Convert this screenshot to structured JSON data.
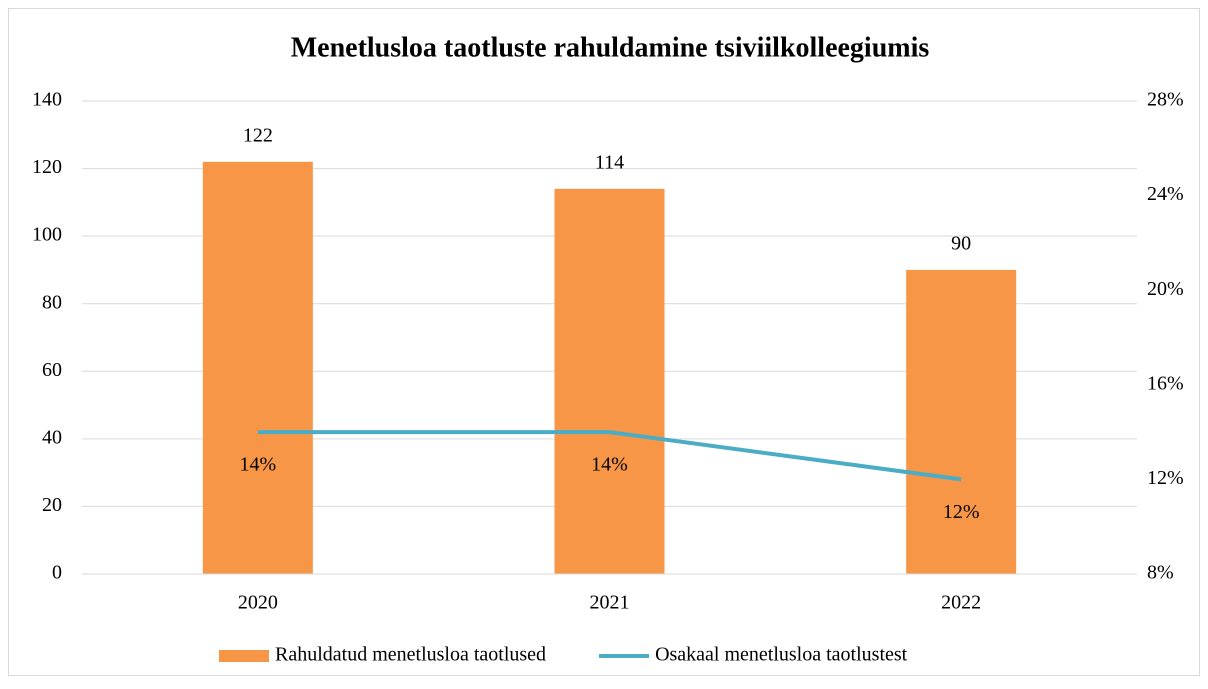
{
  "chart_data": {
    "type": "combo",
    "title": "Menetlusloa taotluste rahuldamine tsiviilkolleegiumis",
    "categories": [
      "2020",
      "2021",
      "2022"
    ],
    "series": [
      {
        "name": "Rahuldatud menetlusloa taotlused",
        "type": "bar",
        "color": "#f79646",
        "values": [
          122,
          114,
          90
        ]
      },
      {
        "name": "Osakaal menetlusloa taotlustest",
        "type": "line",
        "axis": "y2",
        "color": "#4bacc6",
        "values": [
          14,
          14,
          12
        ],
        "value_labels": [
          "14%",
          "14%",
          "12%"
        ]
      }
    ],
    "ylim": [
      0,
      140
    ],
    "yticks": [
      0,
      20,
      40,
      60,
      80,
      100,
      120,
      140
    ],
    "y2lim": [
      8,
      28
    ],
    "y2ticks": [
      {
        "value": 8,
        "label": "8%"
      },
      {
        "value": 12,
        "label": "12%"
      },
      {
        "value": 16,
        "label": "16%"
      },
      {
        "value": 20,
        "label": "20%"
      },
      {
        "value": 24,
        "label": "24%"
      },
      {
        "value": 28,
        "label": "28%"
      }
    ],
    "grid": true,
    "legend": "bottom"
  }
}
